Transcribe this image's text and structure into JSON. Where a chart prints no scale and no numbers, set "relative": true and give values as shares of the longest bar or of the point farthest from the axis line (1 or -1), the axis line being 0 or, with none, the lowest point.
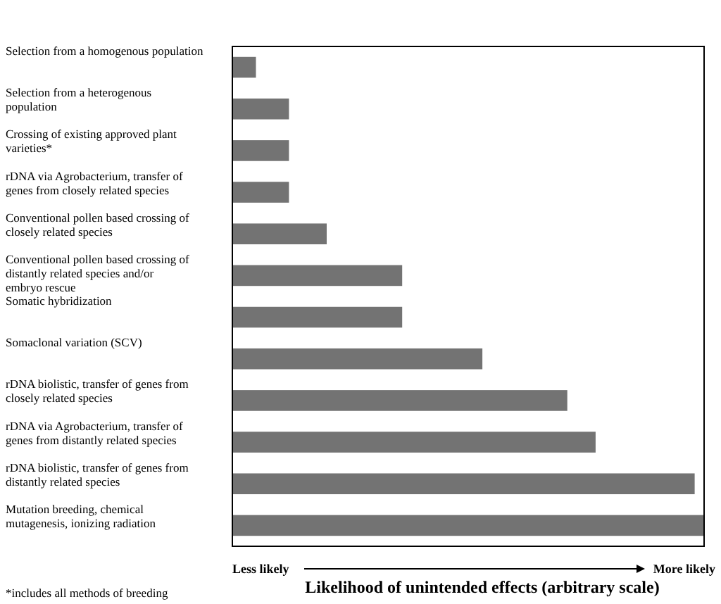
{
  "chart_data": {
    "type": "bar",
    "orientation": "horizontal",
    "relative": true,
    "xlabel": "Likelihood of unintended effects (arbitrary scale)",
    "categories": [
      "Selection from a homogenous population",
      "Selection from a heterogenous population",
      "Crossing of existing approved plant varieties*",
      "rDNA via Agrobacterium, transfer of genes from closely related species",
      "Conventional pollen based crossing of closely related species",
      "Conventional pollen based crossing of distantly related species and/or embryo rescue",
      "Somatic hybridization",
      "Somaclonal variation (SCV)",
      "rDNA biolistic, transfer of genes from closely related species",
      "rDNA via Agrobacterium, transfer of genes from distantly related species",
      "rDNA biolistic, transfer of genes from distantly related species",
      "Mutation breeding, chemical mutagenesis, ionizing radiation"
    ],
    "values": [
      0.05,
      0.12,
      0.12,
      0.12,
      0.2,
      0.36,
      0.36,
      0.53,
      0.71,
      0.77,
      0.98,
      1
    ],
    "color": "#000000",
    "annotations": [
      "Less likely",
      "More likely",
      "*includes all methods of breeding"
    ]
  }
}
